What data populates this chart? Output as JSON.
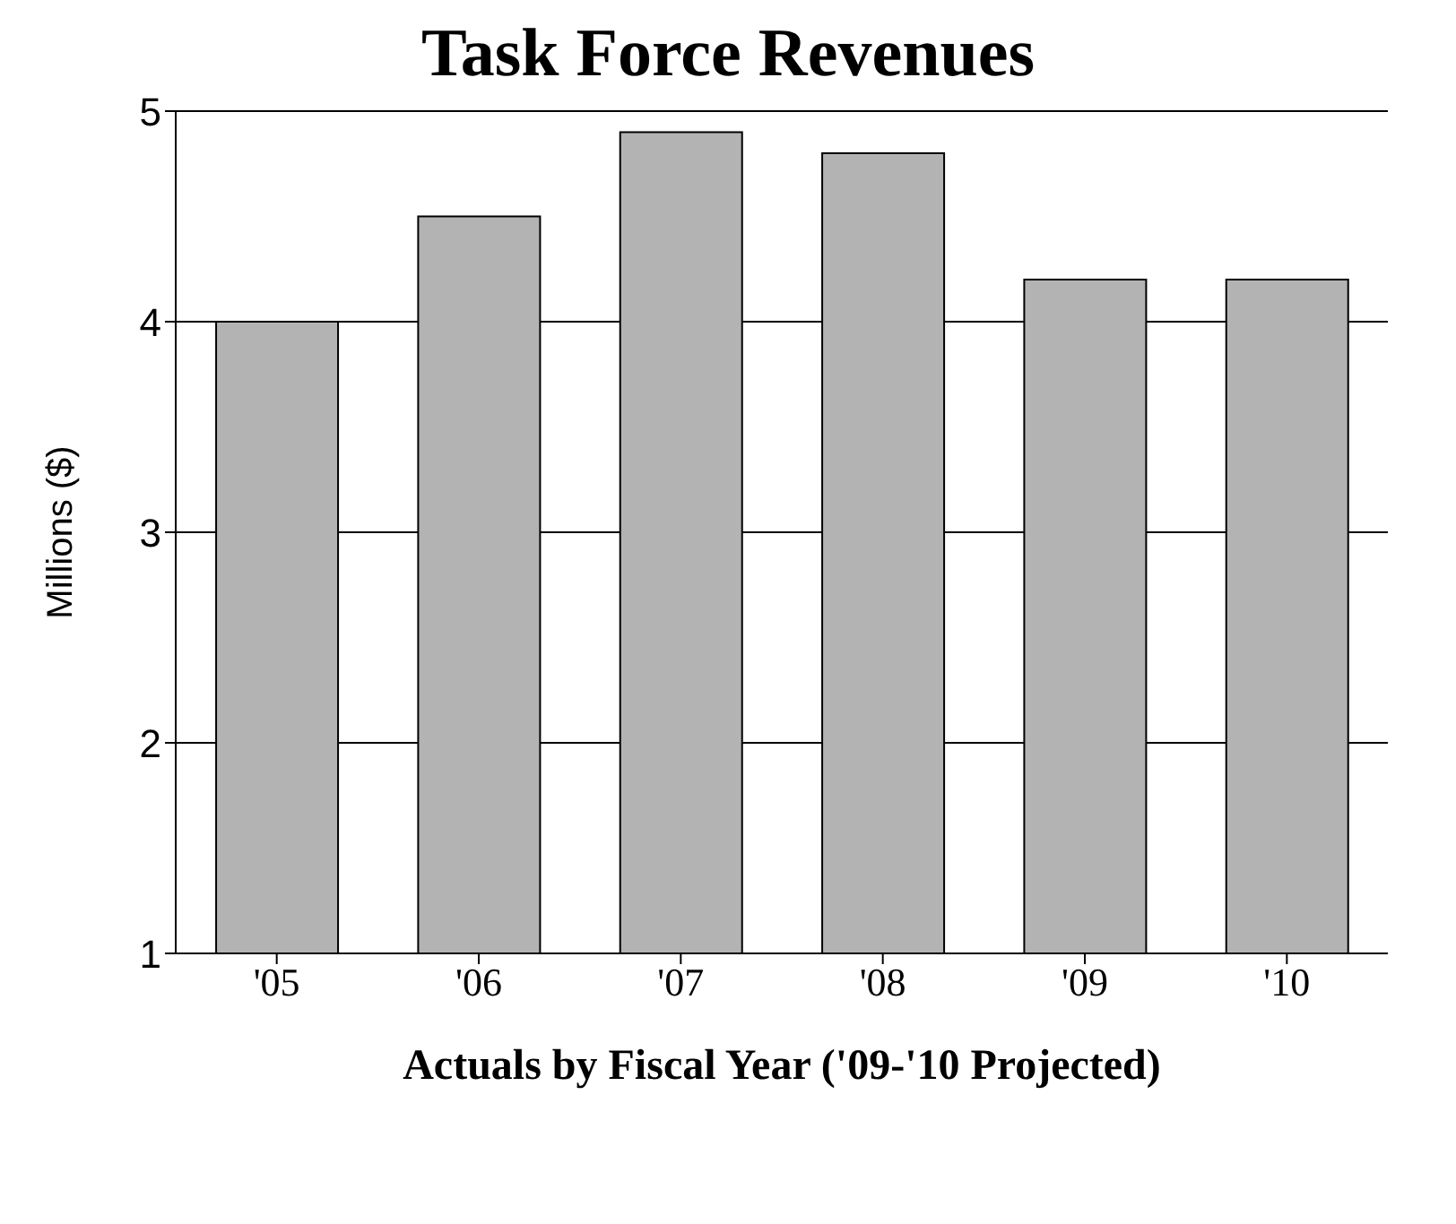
{
  "chart_data": {
    "type": "bar",
    "title": "Task Force Revenues",
    "xlabel": "Actuals by Fiscal Year ('09-'10 Projected)",
    "ylabel": "Millions ($)",
    "categories": [
      "'05",
      "'06",
      "'07",
      "'08",
      "'09",
      "'10"
    ],
    "values": [
      4.0,
      4.5,
      4.9,
      4.8,
      4.2,
      4.2
    ],
    "color": "#b3b3b3",
    "ylim": [
      1,
      5
    ],
    "yticks": [
      1,
      2,
      3,
      4,
      5
    ],
    "grid": "y"
  }
}
